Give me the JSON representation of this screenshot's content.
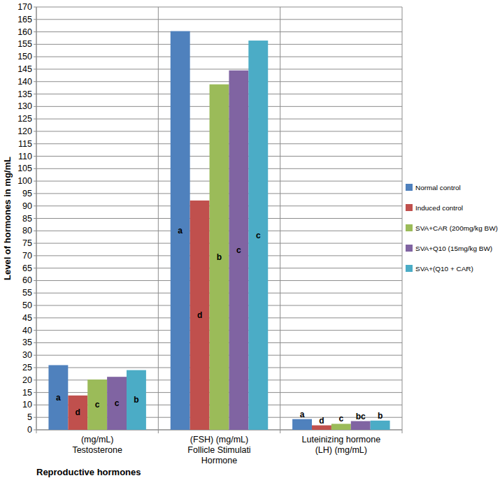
{
  "chart_data": {
    "type": "bar",
    "y_label": "Level of hormones in mg/mL",
    "x_label": "Reproductive hormones",
    "categories": [
      "(mg/mL)\nTestosterone",
      "(FSH) (mg/mL)\nFollicle Stimulati\nHormone",
      "Luteinizing hormone\n(LH) (mg/mL)"
    ],
    "series": [
      {
        "name": "Normal control",
        "color": "#4f81bd",
        "values": [
          26,
          160.3,
          4.3
        ],
        "significance": [
          "a",
          "a",
          "a"
        ]
      },
      {
        "name": "Induced control",
        "color": "#c0504d",
        "values": [
          13.8,
          92.2,
          1.8
        ],
        "significance": [
          "d",
          "d",
          "d"
        ]
      },
      {
        "name": "SVA+CAR (200mg/kg BW)",
        "color": "#9bbb59",
        "values": [
          20.2,
          138.9,
          2.4
        ],
        "significance": [
          "c",
          "b",
          "c"
        ]
      },
      {
        "name": "SVA+Q10 (15mg/kg BW)",
        "color": "#8064a2",
        "values": [
          21.3,
          144.5,
          3.5
        ],
        "significance": [
          "c",
          "c",
          "bc"
        ]
      },
      {
        "name": "SVA+(Q10 + CAR)",
        "color": "#4bacc6",
        "values": [
          24,
          156.5,
          3.7
        ],
        "significance": [
          "b",
          "c",
          "b"
        ]
      }
    ],
    "ylim": [
      0,
      170
    ],
    "yticks": [
      0,
      5,
      10,
      15,
      20,
      25,
      30,
      35,
      40,
      45,
      50,
      55,
      60,
      65,
      70,
      75,
      80,
      85,
      90,
      95,
      100,
      105,
      110,
      115,
      120,
      125,
      130,
      135,
      140,
      145,
      150,
      155,
      160,
      165,
      170
    ],
    "grid": true,
    "legend": "right"
  }
}
